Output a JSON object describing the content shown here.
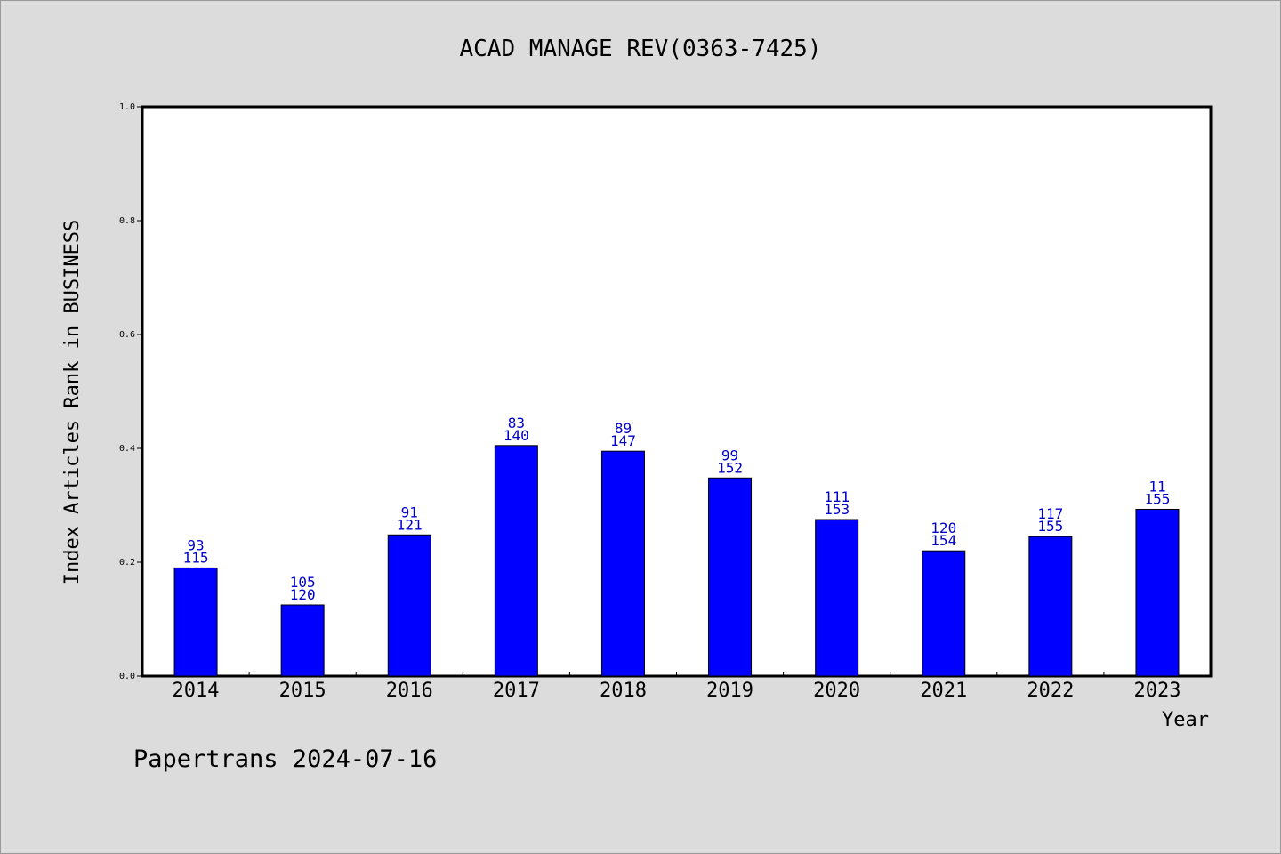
{
  "chart_data": {
    "type": "bar",
    "title": "ACAD MANAGE REV(0363-7425)",
    "xlabel": "Year",
    "ylabel": "Index Articles Rank in BUSINESS",
    "categories": [
      "2014",
      "2015",
      "2016",
      "2017",
      "2018",
      "2019",
      "2020",
      "2021",
      "2022",
      "2023"
    ],
    "values": [
      0.19,
      0.125,
      0.248,
      0.405,
      0.395,
      0.348,
      0.275,
      0.22,
      0.245,
      0.293
    ],
    "labels_top": [
      "93",
      "105",
      "91",
      "83",
      "89",
      "99",
      "111",
      "120",
      "117",
      "11"
    ],
    "labels_bottom": [
      "115",
      "120",
      "121",
      "140",
      "147",
      "152",
      "153",
      "154",
      "155",
      "155"
    ],
    "ylim": [
      0,
      1.0
    ],
    "yticks": [
      "0.0",
      "0.2",
      "0.4",
      "0.6",
      "0.8",
      "1.0"
    ],
    "bar_color": "#0000ff",
    "label_color": "#0000cc",
    "grid": false
  },
  "footer": "Papertrans 2024-07-16"
}
